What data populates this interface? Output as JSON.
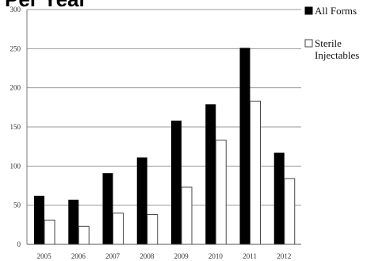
{
  "chart_data": {
    "type": "bar",
    "title": "Per Year",
    "xlabel": "",
    "ylabel": "",
    "categories": [
      "2005",
      "2006",
      "2007",
      "2008",
      "2009",
      "2010",
      "2011",
      "2012"
    ],
    "series": [
      {
        "name": "All Forms",
        "values": [
          62,
          57,
          91,
          111,
          158,
          179,
          251,
          117
        ],
        "color": "#000000"
      },
      {
        "name": "Sterile Injectables",
        "values": [
          31,
          23,
          40,
          38,
          73,
          133,
          183,
          84
        ],
        "color": "#ffffff"
      }
    ],
    "ylim": [
      0,
      300
    ],
    "yticks": [
      "0",
      "50",
      "100",
      "150",
      "200",
      "250",
      "300"
    ],
    "grid": true,
    "legend": "right"
  }
}
